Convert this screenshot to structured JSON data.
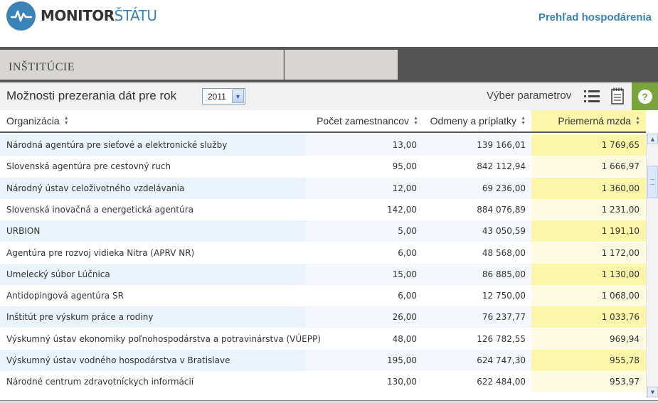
{
  "header": {
    "logo_part1": "MONITOR",
    "logo_part2": "ŠTÁTU",
    "link": "Prehľad hospodárenia"
  },
  "tabs": {
    "main": "INŠTITÚCIE",
    "second": ""
  },
  "options": {
    "title": "Možnosti prezerania dát pre rok",
    "year": "2011",
    "params_label": "Výber parametrov",
    "help": "?"
  },
  "table": {
    "columns": [
      "Organizácia",
      "Počet zamestnancov",
      "Odmeny a príplatky",
      "Priemerná mzda"
    ],
    "rows": [
      [
        "Národná agentúra pre sieťové a elektronické služby",
        "13,00",
        "139 166,01",
        "1 769,65"
      ],
      [
        "Slovenská agentúra pre cestovný ruch",
        "95,00",
        "842 112,94",
        "1 666,97"
      ],
      [
        "Národný ústav celoživotného vzdelávania",
        "12,00",
        "69 236,00",
        "1 360,00"
      ],
      [
        "Slovenská inovačná a energetická agentúra",
        "142,00",
        "884 076,89",
        "1 231,00"
      ],
      [
        "URBION",
        "5,00",
        "43 050,59",
        "1 191,10"
      ],
      [
        "Agentúra pre rozvoj vidieka Nitra (APRV NR)",
        "6,00",
        "48 568,00",
        "1 172,00"
      ],
      [
        "Umelecký súbor Lúčnica",
        "15,00",
        "86 885,00",
        "1 130,00"
      ],
      [
        "Antidopingová agentúra SR",
        "6,00",
        "12 750,00",
        "1 068,00"
      ],
      [
        "Inštitút pre výskum práce a rodiny",
        "26,00",
        "76 237,77",
        "1 033,76"
      ],
      [
        "Výskumný ústav ekonomiky poľnohospodárstva a potravinárstva (VÚEPP)",
        "48,00",
        "126 782,55",
        "969,94"
      ],
      [
        "Výskumný ústav vodného hospodárstva v Bratislave",
        "195,00",
        "624 747,30",
        "955,78"
      ],
      [
        "Národné centrum zdravotníckych informácií",
        "130,00",
        "622 484,00",
        "953,97"
      ]
    ]
  },
  "colors": {
    "brand_blue": "#3b82b6",
    "highlight_yellow": "#fbf6a9",
    "help_green": "#7aa33b",
    "tab_dark": "#555555"
  }
}
